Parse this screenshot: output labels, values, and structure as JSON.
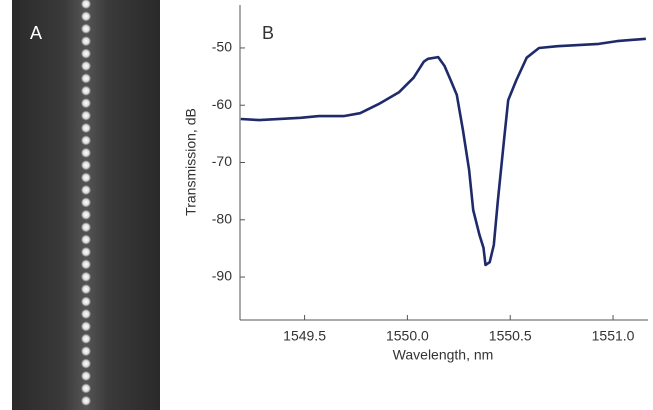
{
  "chart_data": {
    "type": "line",
    "panel_labels": [
      "A",
      "B"
    ],
    "xlabel": "Wavelength, nm",
    "ylabel": "Transmission, dB",
    "x": [
      1549.19,
      1549.28,
      1549.48,
      1549.57,
      1549.69,
      1549.77,
      1549.86,
      1549.96,
      1550.03,
      1550.08,
      1550.1,
      1550.15,
      1550.18,
      1550.21,
      1550.24,
      1550.27,
      1550.3,
      1550.32,
      1550.35,
      1550.37,
      1550.38,
      1550.4,
      1550.42,
      1550.44,
      1550.47,
      1550.49,
      1550.53,
      1550.58,
      1550.64,
      1550.73,
      1550.83,
      1550.93,
      1551.02,
      1551.16
    ],
    "series": [
      {
        "color": "#1f2a6b",
        "values": [
          -62.4,
          -62.6,
          -62.2,
          -61.9,
          -61.9,
          -61.4,
          -59.8,
          -57.7,
          -55.2,
          -52.4,
          -51.9,
          -51.6,
          -53.1,
          -55.6,
          -58.2,
          -64.3,
          -71.3,
          -78.3,
          -82.6,
          -84.9,
          -87.9,
          -87.4,
          -84.4,
          -76.6,
          -66.1,
          -59.1,
          -55.6,
          -51.7,
          -50.0,
          -49.7,
          -49.5,
          -49.3,
          -48.8,
          -48.4
        ]
      }
    ],
    "xlim": [
      1549.186,
      1551.17
    ],
    "xticks": [
      1549.5,
      {
        "value": 1550,
        "label": "1550.0"
      },
      1550.5,
      {
        "value": 1551,
        "label": "1551.0"
      }
    ],
    "ylim": [
      -97.5,
      -42.5
    ],
    "yticks": [
      -50,
      -60,
      -70,
      -80,
      -90
    ]
  }
}
